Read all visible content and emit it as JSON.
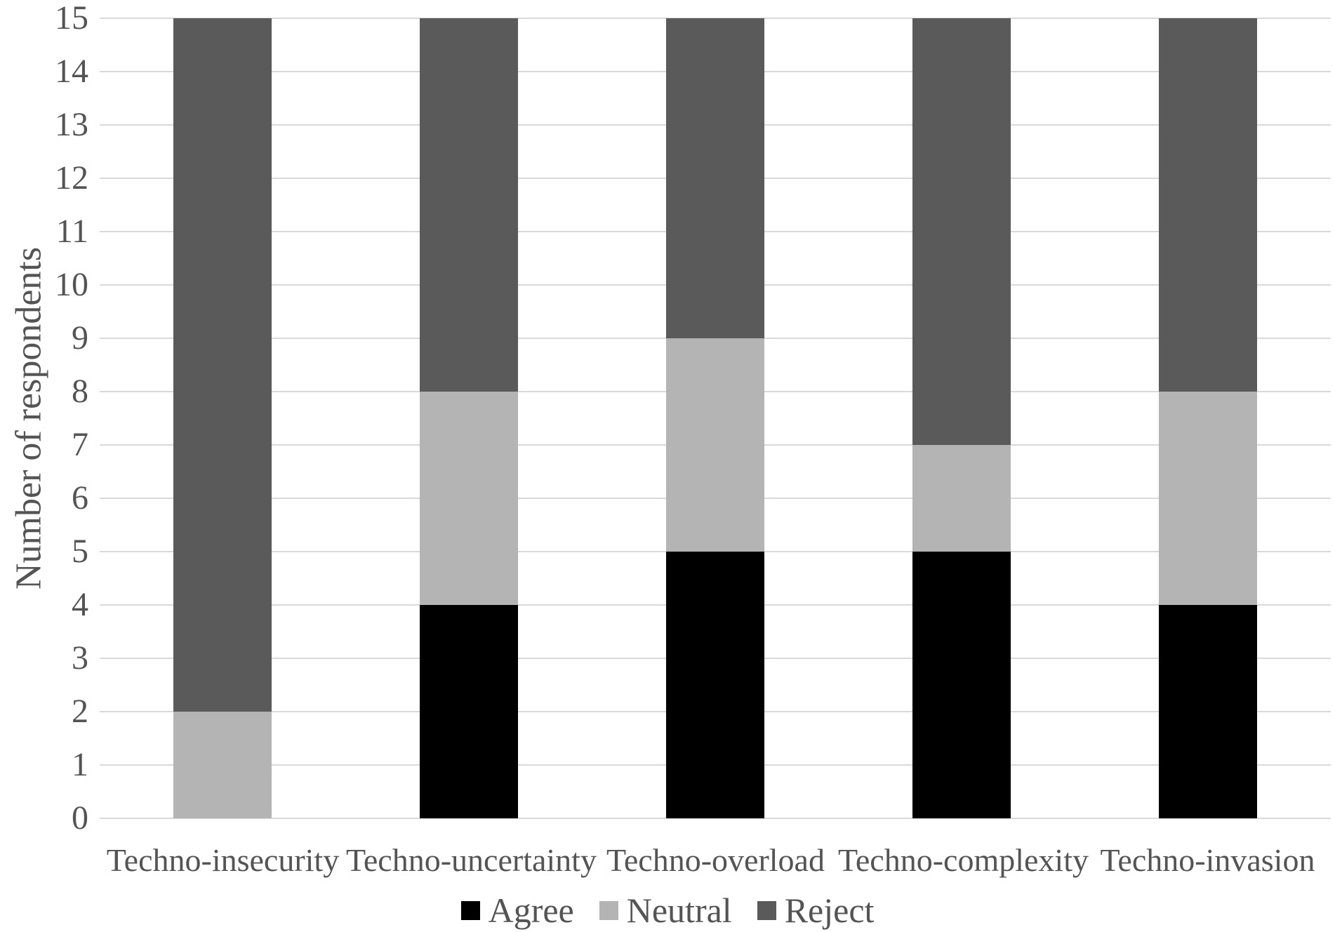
{
  "chart_data": {
    "type": "bar",
    "stacked": true,
    "title": "",
    "xlabel": "",
    "ylabel": "Number of respondents",
    "categories": [
      "Techno-insecurity",
      "Techno-uncertainty",
      "Techno-overload",
      "Techno-complexity",
      "Techno-invasion"
    ],
    "series": [
      {
        "name": "Agree",
        "color": "#000000",
        "values": [
          0,
          4,
          5,
          5,
          4
        ]
      },
      {
        "name": "Neutral",
        "color": "#b4b4b4",
        "values": [
          2,
          4,
          4,
          2,
          4
        ]
      },
      {
        "name": "Reject",
        "color": "#5a5a5a",
        "values": [
          13,
          7,
          6,
          8,
          7
        ]
      }
    ],
    "ylim": [
      0,
      15
    ],
    "ytick_step": 1,
    "yticks": [
      0,
      1,
      2,
      3,
      4,
      5,
      6,
      7,
      8,
      9,
      10,
      11,
      12,
      13,
      14,
      15
    ],
    "grid": true,
    "gridline_color": "#d9d9d9",
    "text_color": "#545454",
    "legend_position": "bottom"
  }
}
